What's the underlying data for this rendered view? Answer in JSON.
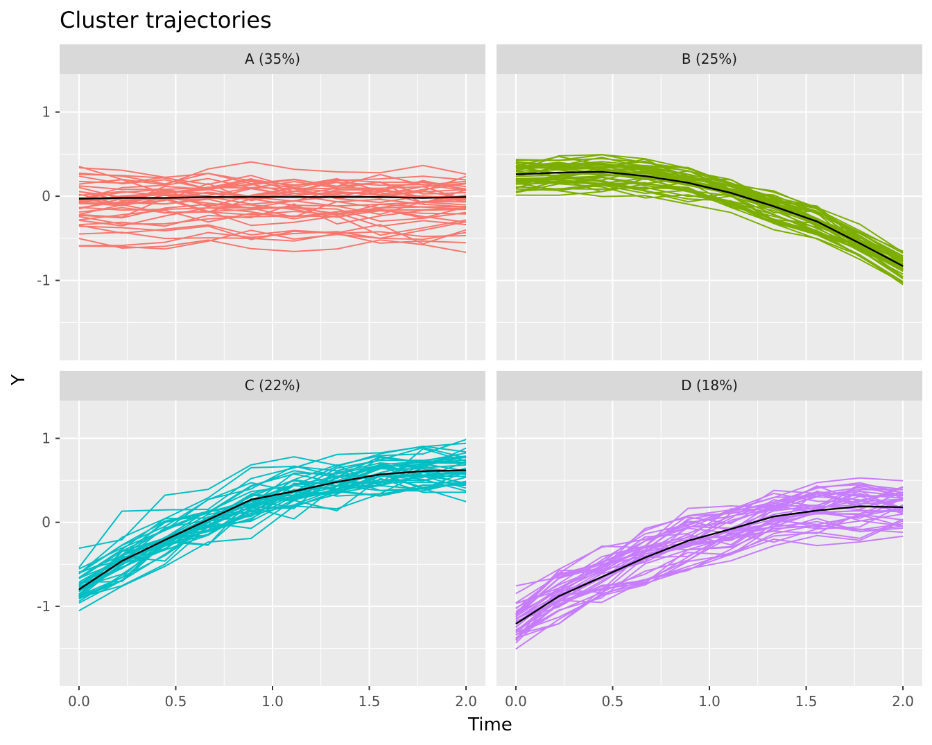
{
  "chart_data": {
    "type": "line",
    "title": "Cluster trajectories",
    "xlabel": "Time",
    "ylabel": "Y",
    "xlim": [
      -0.1,
      2.1
    ],
    "ylim": [
      -1.95,
      1.45
    ],
    "x_ticks": [
      0.0,
      0.5,
      1.0,
      1.5,
      2.0
    ],
    "x_tick_labels": [
      "0.0",
      "0.5",
      "1.0",
      "1.5",
      "2.0"
    ],
    "y_ticks": [
      -1,
      0,
      1
    ],
    "y_tick_labels": [
      "-1",
      "0",
      "1"
    ],
    "x": [
      0.0,
      0.222,
      0.444,
      0.667,
      0.889,
      1.111,
      1.333,
      1.556,
      1.778,
      2.0
    ],
    "mean_color": "#000000",
    "panels": [
      {
        "label": "A (35%)",
        "color": "#F8766D",
        "n_individuals": 40,
        "spread": 0.2,
        "noise": 0.06,
        "mean": [
          -0.03,
          -0.02,
          -0.02,
          -0.01,
          -0.01,
          -0.01,
          -0.01,
          -0.01,
          -0.02,
          -0.01
        ]
      },
      {
        "label": "B (25%)",
        "color": "#7CAE00",
        "n_individuals": 40,
        "spread": 0.1,
        "noise": 0.05,
        "mean": [
          0.26,
          0.28,
          0.29,
          0.24,
          0.16,
          0.04,
          -0.12,
          -0.3,
          -0.56,
          -0.83
        ]
      },
      {
        "label": "C (22%)",
        "color": "#00BFC4",
        "n_individuals": 40,
        "spread": 0.12,
        "noise": 0.09,
        "mean": [
          -0.8,
          -0.46,
          -0.21,
          0.03,
          0.27,
          0.37,
          0.48,
          0.57,
          0.61,
          0.62
        ]
      },
      {
        "label": "D (18%)",
        "color": "#C77CFF",
        "n_individuals": 40,
        "spread": 0.14,
        "noise": 0.09,
        "mean": [
          -1.21,
          -0.88,
          -0.65,
          -0.42,
          -0.22,
          -0.08,
          0.07,
          0.14,
          0.19,
          0.18
        ]
      }
    ]
  }
}
